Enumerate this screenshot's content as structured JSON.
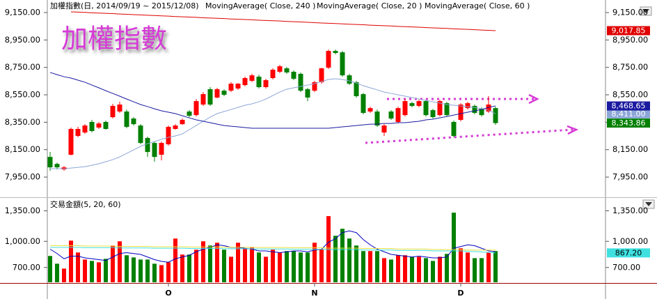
{
  "chart_data": [
    {
      "type": "candlestick",
      "title": "加權指數(日, 2014/09/19 ~ 2015/12/08)",
      "watermark": "加權指數",
      "categories": [
        null,
        null,
        null,
        null,
        null,
        null,
        null,
        null,
        null,
        null,
        null,
        null,
        null,
        null,
        null,
        null,
        null,
        "O",
        null,
        null,
        null,
        null,
        null,
        null,
        null,
        null,
        null,
        null,
        null,
        null,
        null,
        null,
        null,
        null,
        null,
        null,
        null,
        null,
        "N",
        null,
        null,
        null,
        null,
        null,
        null,
        null,
        null,
        null,
        null,
        null,
        null,
        null,
        null,
        null,
        null,
        null,
        null,
        null,
        null,
        "D",
        null,
        null,
        null,
        null,
        null
      ],
      "open": [
        8097,
        8046,
        8006,
        8113,
        8250,
        8275,
        8352,
        8311,
        8352,
        8387,
        8428,
        8428,
        8377,
        8326,
        8235,
        8199,
        8113,
        8189,
        8301,
        8336,
        8428,
        8402,
        8479,
        8591,
        8530,
        8580,
        8580,
        8596,
        8621,
        8652,
        8682,
        8606,
        8672,
        8718,
        8743,
        8718,
        8703,
        8591,
        8580,
        8642,
        8748,
        8870,
        8860,
        8692,
        8642,
        8555,
        8428,
        8428,
        8275,
        8428,
        8352,
        8402,
        8489,
        8469,
        8504,
        8438,
        8402,
        8489,
        8352,
        8367,
        8453,
        8469,
        8448,
        8428,
        8453
      ],
      "high": [
        8133,
        8056,
        8031,
        8311,
        8316,
        8336,
        8367,
        8352,
        8362,
        8484,
        8500,
        8443,
        8387,
        8336,
        8245,
        8209,
        8209,
        8326,
        8336,
        8377,
        8438,
        8519,
        8570,
        8606,
        8601,
        8591,
        8642,
        8636,
        8682,
        8703,
        8697,
        8667,
        8743,
        8768,
        8753,
        8728,
        8713,
        8601,
        8652,
        8748,
        8880,
        8880,
        8870,
        8703,
        8652,
        8565,
        8463,
        8443,
        8336,
        8438,
        8463,
        8519,
        8499,
        8514,
        8514,
        8448,
        8514,
        8499,
        8362,
        8489,
        8499,
        8479,
        8458,
        8540,
        8463
      ],
      "low": [
        7996,
        8006,
        7996,
        8108,
        8240,
        8265,
        8275,
        8301,
        8296,
        8377,
        8418,
        8306,
        8326,
        8189,
        8097,
        8062,
        8072,
        8180,
        8296,
        8331,
        8387,
        8392,
        8469,
        8469,
        8525,
        8540,
        8570,
        8586,
        8611,
        8642,
        8596,
        8596,
        8662,
        8708,
        8703,
        8657,
        8570,
        8504,
        8570,
        8631,
        8738,
        8845,
        8682,
        8621,
        8530,
        8408,
        8418,
        8316,
        8250,
        8367,
        8341,
        8392,
        8459,
        8459,
        8392,
        8377,
        8392,
        8392,
        8240,
        8357,
        8443,
        8408,
        8392,
        8418,
        8331
      ],
      "close": [
        8021,
        8021,
        8021,
        8301,
        8301,
        8326,
        8286,
        8341,
        8301,
        8469,
        8479,
        8316,
        8336,
        8199,
        8133,
        8097,
        8199,
        8316,
        8326,
        8367,
        8397,
        8504,
        8555,
        8479,
        8591,
        8550,
        8631,
        8631,
        8672,
        8692,
        8606,
        8657,
        8733,
        8758,
        8713,
        8667,
        8580,
        8530,
        8642,
        8743,
        8870,
        8855,
        8692,
        8631,
        8540,
        8418,
        8453,
        8326,
        8326,
        8377,
        8453,
        8504,
        8469,
        8504,
        8402,
        8387,
        8504,
        8402,
        8250,
        8479,
        8489,
        8418,
        8402,
        8479,
        8343.86
      ],
      "last_label": "8,343.86",
      "up_color": "#ff0000",
      "down_color": "#008000",
      "series": [
        {
          "name": "MovingAverage( Close, 240 )",
          "color": "#e00000",
          "last_label": "9,017.85",
          "values": [
            null,
            null,
            null,
            9155,
            9153,
            9151,
            9148,
            9146,
            9144,
            9142,
            9139,
            9137,
            9135,
            9133,
            9130,
            9128,
            9126,
            9124,
            9121,
            9119,
            9117,
            9115,
            9112,
            9110,
            9108,
            9106,
            9103,
            9101,
            9099,
            9097,
            9094,
            9092,
            9090,
            9088,
            9085,
            9083,
            9081,
            9079,
            9076,
            9074,
            9072,
            9070,
            9067,
            9065,
            9063,
            9061,
            9058,
            9056,
            9054,
            9052,
            9049,
            9047,
            9045,
            9043,
            9040,
            9038,
            9036,
            9034,
            9031,
            9029,
            9027,
            9025,
            9022,
            9020,
            9017.85
          ]
        },
        {
          "name": "MovingAverage( Close, 20 )",
          "color": "#8ca6d8",
          "last_label": "8,411.00",
          "values": [
            8011,
            8011,
            8011,
            8016,
            8021,
            8026,
            8036,
            8047,
            8062,
            8077,
            8097,
            8123,
            8148,
            8174,
            8194,
            8209,
            8225,
            8240,
            8250,
            8265,
            8296,
            8326,
            8357,
            8387,
            8413,
            8428,
            8443,
            8458,
            8474,
            8484,
            8499,
            8519,
            8545,
            8570,
            8591,
            8601,
            8611,
            8621,
            8631,
            8647,
            8662,
            8667,
            8662,
            8652,
            8636,
            8616,
            8601,
            8586,
            8570,
            8560,
            8550,
            8540,
            8530,
            8519,
            8509,
            8499,
            8489,
            8479,
            8474,
            8469,
            8464,
            8458,
            8448,
            8438,
            8411
          ]
        },
        {
          "name": "MovingAverage( Close, 60 )",
          "color": "#1a1aa0",
          "last_label": "8,468.65",
          "values": [
            8713,
            8697,
            8682,
            8672,
            8657,
            8642,
            8621,
            8601,
            8580,
            8560,
            8540,
            8519,
            8499,
            8479,
            8464,
            8448,
            8433,
            8423,
            8413,
            8397,
            8382,
            8367,
            8357,
            8347,
            8336,
            8326,
            8321,
            8316,
            8311,
            8306,
            8306,
            8306,
            8306,
            8306,
            8306,
            8306,
            8306,
            8306,
            8306,
            8306,
            8306,
            8311,
            8316,
            8321,
            8326,
            8331,
            8336,
            8336,
            8341,
            8341,
            8347,
            8347,
            8352,
            8357,
            8367,
            8372,
            8382,
            8392,
            8402,
            8413,
            8423,
            8433,
            8443,
            8458,
            8468.65
          ]
        }
      ],
      "ylim": [
        7808,
        9216
      ],
      "yticks": [
        {
          "value": 9150,
          "label": "9,150.00"
        },
        {
          "value": 8950,
          "label": "8,950.00"
        },
        {
          "value": 8750,
          "label": "8,750.00"
        },
        {
          "value": 8550,
          "label": "8,550.00"
        },
        {
          "value": 8350,
          "label": "8,350.00"
        },
        {
          "value": 8150,
          "label": "8,150.00"
        },
        {
          "value": 7950,
          "label": "7,950.00"
        }
      ]
    },
    {
      "type": "bar",
      "title": "交易金額(5, 20, 60)",
      "values": [
        832,
        743,
        687,
        1008,
        872,
        791,
        775,
        759,
        799,
        952,
        1000,
        840,
        815,
        791,
        791,
        743,
        727,
        759,
        1032,
        848,
        848,
        904,
        1000,
        952,
        984,
        904,
        823,
        984,
        920,
        928,
        872,
        823,
        904,
        872,
        888,
        888,
        872,
        872,
        984,
        912,
        1289,
        1064,
        1144,
        1032,
        952,
        888,
        888,
        888,
        807,
        791,
        840,
        840,
        823,
        823,
        807,
        775,
        823,
        856,
        1329,
        920,
        872,
        807,
        807,
        872,
        888
      ],
      "series": [
        {
          "color": "#0000c0",
          "values": [
            910,
            860,
            800,
            830,
            830,
            810,
            800,
            790,
            780,
            820,
            860,
            870,
            860,
            850,
            820,
            790,
            770,
            760,
            800,
            820,
            840,
            880,
            910,
            930,
            960,
            950,
            930,
            930,
            920,
            910,
            890,
            890,
            880,
            870,
            880,
            890,
            890,
            880,
            900,
            910,
            990,
            1030,
            1100,
            1120,
            1100,
            1020,
            960,
            910,
            880,
            850,
            840,
            830,
            820,
            830,
            820,
            810,
            810,
            820,
            920,
            940,
            960,
            950,
            920,
            890,
            880
          ]
        },
        {
          "color": "#e8e040",
          "values": [
            950,
            950,
            950,
            950,
            950,
            946,
            946,
            946,
            946,
            946,
            942,
            942,
            942,
            942,
            942,
            938,
            938,
            938,
            938,
            938,
            935,
            935,
            935,
            935,
            935,
            932,
            932,
            932,
            932,
            932,
            929,
            929,
            929,
            929,
            929,
            926,
            926,
            926,
            926,
            926,
            922,
            922,
            922,
            922,
            922,
            918,
            918,
            918,
            918,
            918,
            912,
            912,
            912,
            912,
            912,
            906,
            906,
            906,
            906,
            906,
            900,
            900,
            900,
            900,
            900
          ]
        },
        {
          "color": "#40e0e0",
          "last_label": "867.20",
          "values": [
            930,
            930,
            930,
            930,
            930,
            927,
            927,
            927,
            927,
            927,
            924,
            924,
            924,
            924,
            924,
            921,
            921,
            921,
            921,
            921,
            918,
            918,
            918,
            918,
            918,
            915,
            915,
            915,
            915,
            915,
            912,
            912,
            912,
            912,
            912,
            909,
            909,
            909,
            909,
            909,
            905,
            905,
            905,
            905,
            905,
            900,
            900,
            900,
            900,
            900,
            895,
            895,
            895,
            895,
            895,
            890,
            890,
            890,
            890,
            890,
            885,
            882,
            878,
            872,
            867.2
          ]
        }
      ],
      "ylim": [
        530,
        1490
      ],
      "yticks": [
        {
          "value": 1350,
          "label": "1,350.00"
        },
        {
          "value": 1000,
          "label": "1,000.00"
        },
        {
          "value": 700,
          "label": "700.00"
        }
      ]
    }
  ]
}
